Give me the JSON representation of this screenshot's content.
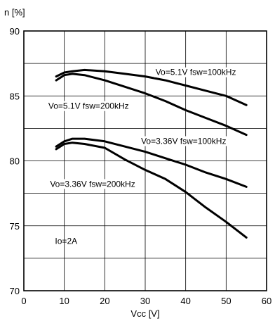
{
  "chart_data": {
    "type": "line",
    "title": "",
    "xlabel": "Vcc [V]",
    "ylabel": "n [%]",
    "xlim": [
      0,
      60
    ],
    "ylim": [
      70,
      90
    ],
    "xticks": [
      0,
      10,
      20,
      30,
      40,
      50,
      60
    ],
    "yticks": [
      70,
      75,
      80,
      85,
      90
    ],
    "grid": true,
    "series": [
      {
        "name": "Vo=5.1V fsw=100kHz",
        "x": [
          8,
          10,
          12,
          15,
          20,
          25,
          30,
          35,
          40,
          45,
          50,
          55
        ],
        "y": [
          86.5,
          86.8,
          86.9,
          87.0,
          86.9,
          86.7,
          86.5,
          86.2,
          85.8,
          85.4,
          85.0,
          84.3
        ]
      },
      {
        "name": "Vo=5.1V fsw=200kHz",
        "x": [
          8,
          10,
          12,
          15,
          20,
          25,
          30,
          35,
          40,
          45,
          50,
          55
        ],
        "y": [
          86.2,
          86.6,
          86.7,
          86.6,
          86.2,
          85.7,
          85.2,
          84.6,
          83.9,
          83.3,
          82.7,
          82.0
        ]
      },
      {
        "name": "Vo=3.36V fsw=100kHz",
        "x": [
          8,
          10,
          12,
          15,
          20,
          25,
          30,
          35,
          40,
          45,
          50,
          55
        ],
        "y": [
          81.1,
          81.5,
          81.7,
          81.7,
          81.5,
          81.1,
          80.7,
          80.2,
          79.7,
          79.1,
          78.6,
          78.0
        ]
      },
      {
        "name": "Vo=3.36V fsw=200kHz",
        "x": [
          8,
          10,
          12,
          15,
          20,
          25,
          30,
          35,
          40,
          45,
          50,
          55
        ],
        "y": [
          80.9,
          81.3,
          81.4,
          81.3,
          81.0,
          80.1,
          79.3,
          78.6,
          77.6,
          76.4,
          75.3,
          74.1
        ]
      }
    ],
    "series_labels": [
      {
        "text": "Vo=5.1V fsw=100kHz",
        "x": 42.5,
        "y": 86.6
      },
      {
        "text": "Vo=5.1V fsw=200kHz",
        "x": 16.0,
        "y": 84.0
      },
      {
        "text": "Vo=3.36V fsw=100kHz",
        "x": 39.5,
        "y": 81.3
      },
      {
        "text": "Vo=3.36V fsw=200kHz",
        "x": 17.0,
        "y": 78.0
      }
    ],
    "annotation": {
      "text": "Io=2A",
      "x": 11.0,
      "y": 73.6
    }
  }
}
